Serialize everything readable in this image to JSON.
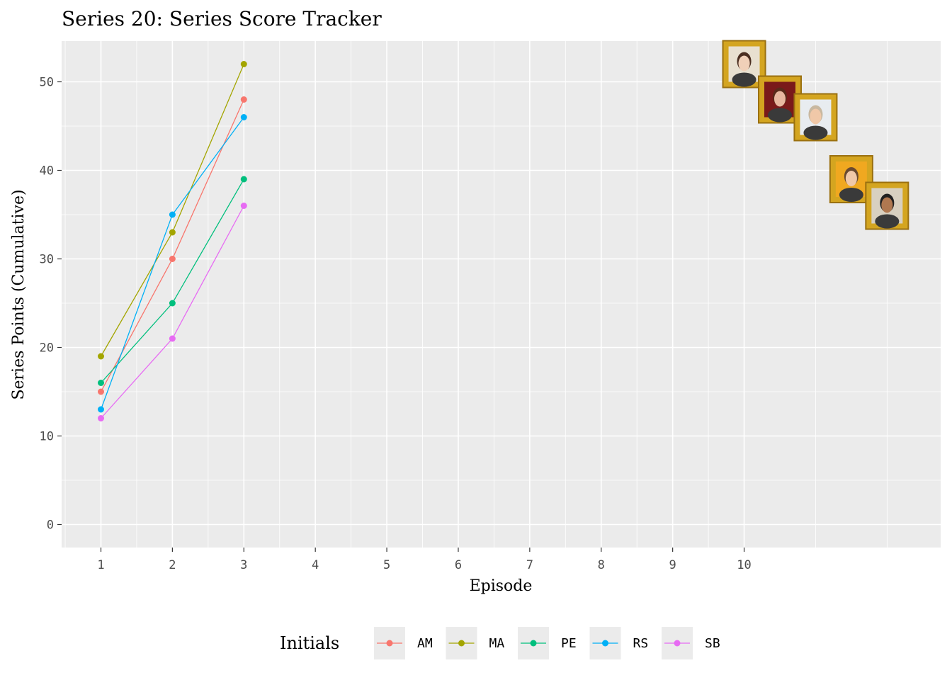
{
  "chart_data": {
    "type": "line",
    "title": "Series 20: Series Score Tracker",
    "xlabel": "Episode",
    "ylabel": "Series Points (Cumulative)",
    "x_ticks": [
      1,
      2,
      3,
      4,
      5,
      6,
      7,
      8,
      9,
      10
    ],
    "y_ticks": [
      0,
      10,
      20,
      30,
      40,
      50
    ],
    "xlim": [
      0.45,
      12.75
    ],
    "ylim": [
      -2.6,
      54.6
    ],
    "grid": true,
    "background": "#EBEBEB",
    "legend": {
      "title": "Initials",
      "position": "bottom"
    },
    "series": [
      {
        "name": "AM",
        "color": "#F8766D",
        "x": [
          1,
          2,
          3
        ],
        "values": [
          15,
          30,
          48
        ]
      },
      {
        "name": "MA",
        "color": "#A3A500",
        "x": [
          1,
          2,
          3
        ],
        "values": [
          19,
          33,
          52
        ]
      },
      {
        "name": "PE",
        "color": "#00BF7D",
        "x": [
          1,
          2,
          3
        ],
        "values": [
          16,
          25,
          39
        ]
      },
      {
        "name": "RS",
        "color": "#00B0F6",
        "x": [
          1,
          2,
          3
        ],
        "values": [
          13,
          35,
          46
        ]
      },
      {
        "name": "SB",
        "color": "#E76BF3",
        "x": [
          1,
          2,
          3
        ],
        "values": [
          12,
          21,
          36
        ]
      }
    ],
    "portraits": [
      {
        "label": "MA",
        "x": 10.0,
        "y": 52,
        "frame": "#d4a520",
        "bg": "#e8e0d0",
        "skin": "#f0d0b8",
        "hair": "#4a2e20"
      },
      {
        "label": "AM",
        "x": 10.5,
        "y": 48,
        "frame": "#d4a520",
        "bg": "#7a1a1a",
        "skin": "#e8b8a0",
        "hair": "#5a2a1a"
      },
      {
        "label": "RS",
        "x": 11.0,
        "y": 46,
        "frame": "#d4a520",
        "bg": "#e8ecf0",
        "skin": "#f0c8a8",
        "hair": "#c8b8a0"
      },
      {
        "label": "PE",
        "x": 11.5,
        "y": 39,
        "frame": "#d4a520",
        "bg": "#f0a820",
        "skin": "#f0c8a8",
        "hair": "#6a4a30"
      },
      {
        "label": "SB",
        "x": 12.0,
        "y": 36,
        "frame": "#d4a520",
        "bg": "#d8d0c0",
        "skin": "#b07850",
        "hair": "#202020"
      }
    ]
  }
}
